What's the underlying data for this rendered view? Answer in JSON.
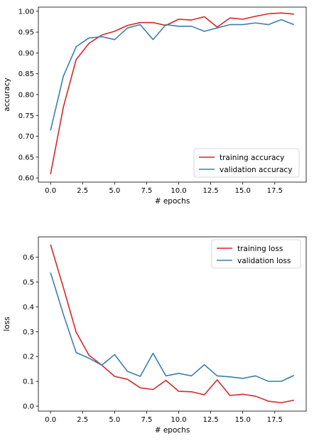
{
  "chart_data": [
    {
      "type": "line",
      "xlabel": "# epochs",
      "ylabel": "accuracy",
      "xlim": [
        -0.95,
        19.95
      ],
      "ylim": [
        0.59,
        1.01
      ],
      "xticks": [
        0.0,
        2.5,
        5.0,
        7.5,
        10.0,
        12.5,
        15.0,
        17.5
      ],
      "xtick_labels": [
        "0.0",
        "2.5",
        "5.0",
        "7.5",
        "10.0",
        "12.5",
        "15.0",
        "17.5"
      ],
      "yticks": [
        0.6,
        0.65,
        0.7,
        0.75,
        0.8,
        0.85,
        0.9,
        0.95,
        1.0
      ],
      "ytick_labels": [
        "0.60",
        "0.65",
        "0.70",
        "0.75",
        "0.80",
        "0.85",
        "0.90",
        "0.95",
        "1.00"
      ],
      "grid": false,
      "legend_position": "lower-right",
      "x": [
        0,
        1,
        2,
        3,
        4,
        5,
        6,
        7,
        8,
        9,
        10,
        11,
        12,
        13,
        14,
        15,
        16,
        17,
        18,
        19
      ],
      "series": [
        {
          "name": "training accuracy",
          "color": "#d62728",
          "values": [
            0.609,
            0.77,
            0.884,
            0.923,
            0.943,
            0.952,
            0.966,
            0.973,
            0.973,
            0.966,
            0.981,
            0.979,
            0.987,
            0.962,
            0.984,
            0.981,
            0.988,
            0.994,
            0.996,
            0.993
          ]
        },
        {
          "name": "validation accuracy",
          "color": "#3b7fae",
          "values": [
            0.714,
            0.844,
            0.915,
            0.936,
            0.939,
            0.932,
            0.96,
            0.968,
            0.932,
            0.968,
            0.964,
            0.964,
            0.952,
            0.96,
            0.968,
            0.968,
            0.972,
            0.968,
            0.98,
            0.968
          ]
        }
      ]
    },
    {
      "type": "line",
      "xlabel": "# epochs",
      "ylabel": "loss",
      "xlim": [
        -0.95,
        19.95
      ],
      "ylim": [
        -0.02,
        0.682
      ],
      "xticks": [
        0.0,
        2.5,
        5.0,
        7.5,
        10.0,
        12.5,
        15.0,
        17.5
      ],
      "xtick_labels": [
        "0.0",
        "2.5",
        "5.0",
        "7.5",
        "10.0",
        "12.5",
        "15.0",
        "17.5"
      ],
      "yticks": [
        0.0,
        0.1,
        0.2,
        0.3,
        0.4,
        0.5,
        0.6
      ],
      "ytick_labels": [
        "0.0",
        "0.1",
        "0.2",
        "0.3",
        "0.4",
        "0.5",
        "0.6"
      ],
      "grid": false,
      "legend_position": "upper-right",
      "x": [
        0,
        1,
        2,
        3,
        4,
        5,
        6,
        7,
        8,
        9,
        10,
        11,
        12,
        13,
        14,
        15,
        16,
        17,
        18,
        19
      ],
      "series": [
        {
          "name": "training loss",
          "color": "#d62728",
          "values": [
            0.651,
            0.478,
            0.298,
            0.205,
            0.165,
            0.12,
            0.108,
            0.074,
            0.067,
            0.104,
            0.06,
            0.058,
            0.046,
            0.106,
            0.043,
            0.048,
            0.04,
            0.02,
            0.014,
            0.024
          ]
        },
        {
          "name": "validation loss",
          "color": "#3b7fae",
          "values": [
            0.538,
            0.37,
            0.216,
            0.193,
            0.165,
            0.208,
            0.14,
            0.12,
            0.213,
            0.122,
            0.132,
            0.122,
            0.167,
            0.122,
            0.118,
            0.112,
            0.122,
            0.1,
            0.1,
            0.124
          ]
        }
      ]
    }
  ]
}
